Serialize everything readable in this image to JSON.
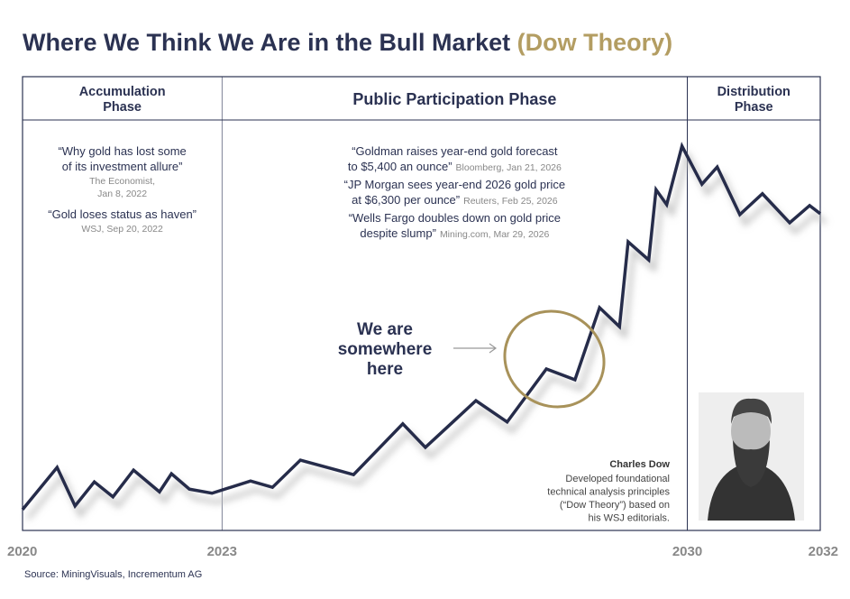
{
  "chart_data": {
    "type": "line",
    "title": "Where We Think We Are in the Bull Market",
    "title_highlight": "(Dow Theory)",
    "x": [
      2020,
      2020.52,
      2020.79,
      2021.08,
      2021.36,
      2021.67,
      2022.06,
      2022.24,
      2022.51,
      2022.85,
      2023.43,
      2023.76,
      2024.18,
      2024.98,
      2025.72,
      2026.06,
      2026.82,
      2027.29,
      2027.88,
      2028.31,
      2028.68,
      2028.98,
      2029.11,
      2029.42,
      2029.53,
      2029.69,
      2029.92,
      2030.22,
      2030.45,
      2030.79,
      2031.13,
      2031.54,
      2031.84,
      2032
    ],
    "series": [
      {
        "color": "#262c4a",
        "values": [
          4.6,
          13.9,
          5.4,
          10.7,
          7.4,
          13.3,
          8.5,
          12.5,
          9.1,
          8.2,
          10.9,
          9.5,
          15.5,
          12.3,
          23.5,
          18.3,
          28.6,
          23.9,
          35.6,
          33.2,
          49.1,
          44.9,
          63.6,
          59.6,
          75.1,
          71.8,
          84.7,
          76.3,
          80.1,
          69.6,
          74.2,
          67.8,
          71.6,
          69.8
        ]
      }
    ],
    "xlim": [
      2020,
      2032
    ],
    "ylim": [
      0,
      100
    ],
    "xticks": [
      2020,
      2023,
      2030,
      2032
    ],
    "phases": [
      {
        "name": [
          "Accumulation",
          "Phase"
        ],
        "quotes": [
          {
            "quote": [
              "“Why gold has lost some",
              "of its investment allure”"
            ],
            "source": [
              "The Economist,",
              "Jan 8, 2022"
            ]
          },
          {
            "quote": [
              "“Gold loses status as haven”"
            ],
            "source": [
              "WSJ, Sep 20, 2022"
            ]
          }
        ]
      },
      {
        "name": [
          "Public Participation Phase"
        ],
        "quotes": [
          {
            "quote": [
              "“Goldman raises year-end gold forecast",
              "to $5,400 an ounce”"
            ],
            "source": [
              "Bloomberg, Jan 21, 2026"
            ]
          },
          {
            "quote": [
              "“JP Morgan sees year-end 2026 gold price",
              "at $6,300 per ounce”"
            ],
            "source": [
              "Reuters, Feb 25, 2026"
            ]
          },
          {
            "quote": [
              "“Wells Fargo doubles down on gold price",
              "despite slump”"
            ],
            "source": [
              "Mining.com, Mar 29, 2026"
            ]
          }
        ]
      },
      {
        "name": [
          "Distribution",
          "Phase"
        ],
        "quotes": []
      }
    ],
    "annotation": [
      "We are",
      "somewhere",
      "here"
    ],
    "portrait_caption": {
      "name": "Charles Dow",
      "lines": [
        "Developed foundational",
        "technical analysis principles",
        "(“Dow Theory”) based on",
        "his WSJ editorials."
      ]
    },
    "source": "Source: MiningVisuals, Incrementum AG"
  }
}
